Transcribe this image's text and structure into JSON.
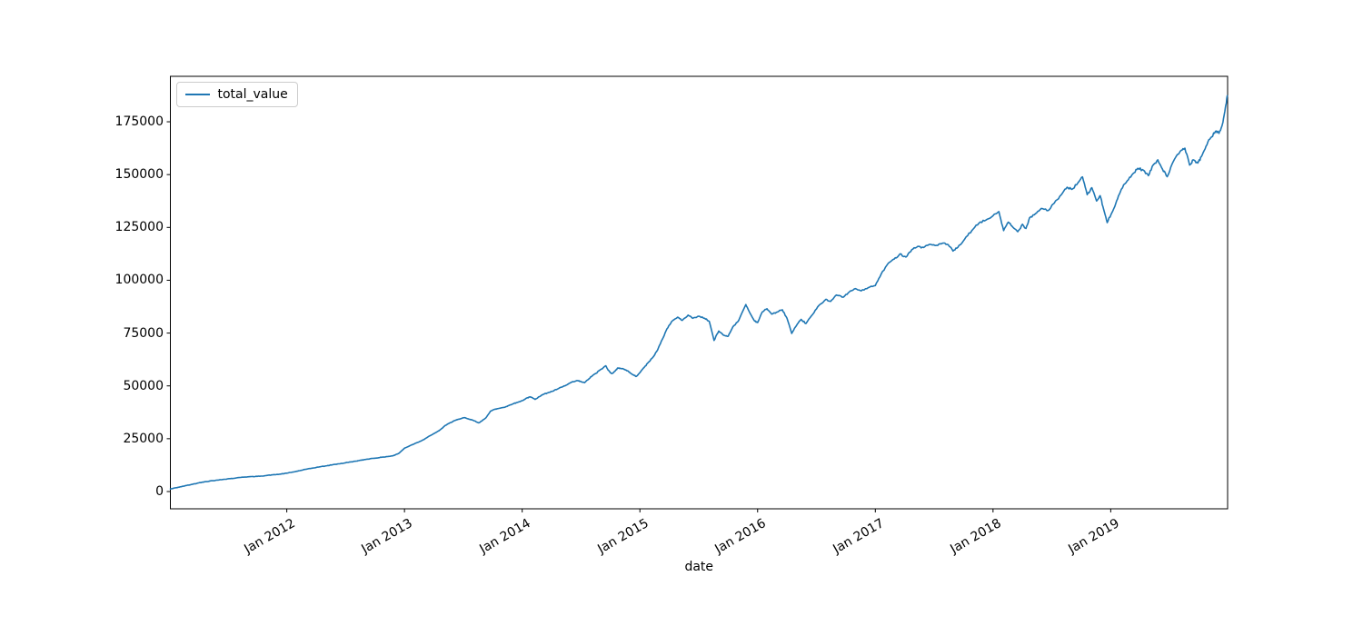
{
  "figure": {
    "background": "#ffffff"
  },
  "legend": {
    "label": "total_value"
  },
  "chart_data": {
    "type": "line",
    "title": "",
    "xlabel": "date",
    "ylabel": "",
    "grid": false,
    "legend_position": "upper left",
    "line_color": "#1f77b4",
    "axis_color": "#000000",
    "xlim": [
      2011.011,
      2019.993
    ],
    "ylim": [
      -8170,
      196510
    ],
    "yticks": [
      {
        "value": 0,
        "label": "0"
      },
      {
        "value": 25000,
        "label": "25000"
      },
      {
        "value": 50000,
        "label": "50000"
      },
      {
        "value": 75000,
        "label": "75000"
      },
      {
        "value": 100000,
        "label": "100000"
      },
      {
        "value": 125000,
        "label": "125000"
      },
      {
        "value": 150000,
        "label": "150000"
      },
      {
        "value": 175000,
        "label": "175000"
      }
    ],
    "xticks": [
      {
        "value": 2012,
        "label": "Jan 2012"
      },
      {
        "value": 2013,
        "label": "Jan 2013"
      },
      {
        "value": 2014,
        "label": "Jan 2014"
      },
      {
        "value": 2015,
        "label": "Jan 2015"
      },
      {
        "value": 2016,
        "label": "Jan 2016"
      },
      {
        "value": 2017,
        "label": "Jan 2017"
      },
      {
        "value": 2018,
        "label": "Jan 2018"
      },
      {
        "value": 2019,
        "label": "Jan 2019"
      }
    ],
    "series": [
      {
        "name": "total_value",
        "color": "#1f77b4",
        "points": [
          [
            2011.011,
            1200
          ],
          [
            2011.06,
            1800
          ],
          [
            2011.103,
            2300
          ],
          [
            2011.15,
            2900
          ],
          [
            2011.196,
            3400
          ],
          [
            2011.25,
            4100
          ],
          [
            2011.3,
            4600
          ],
          [
            2011.36,
            5100
          ],
          [
            2011.41,
            5400
          ],
          [
            2011.47,
            5800
          ],
          [
            2011.51,
            6100
          ],
          [
            2011.56,
            6300
          ],
          [
            2011.62,
            6800
          ],
          [
            2011.68,
            7000
          ],
          [
            2011.73,
            7100
          ],
          [
            2011.78,
            7300
          ],
          [
            2011.83,
            7600
          ],
          [
            2011.88,
            7900
          ],
          [
            2011.94,
            8200
          ],
          [
            2012.0,
            8700
          ],
          [
            2012.06,
            9300
          ],
          [
            2012.11,
            9900
          ],
          [
            2012.17,
            10600
          ],
          [
            2012.22,
            11100
          ],
          [
            2012.28,
            11700
          ],
          [
            2012.34,
            12200
          ],
          [
            2012.39,
            12700
          ],
          [
            2012.44,
            13100
          ],
          [
            2012.49,
            13500
          ],
          [
            2012.54,
            14000
          ],
          [
            2012.59,
            14400
          ],
          [
            2012.63,
            14800
          ],
          [
            2012.68,
            15300
          ],
          [
            2012.73,
            15700
          ],
          [
            2012.78,
            16000
          ],
          [
            2012.82,
            16300
          ],
          [
            2012.86,
            16600
          ],
          [
            2012.9,
            16900
          ],
          [
            2012.95,
            18000
          ],
          [
            2013.0,
            20500
          ],
          [
            2013.05,
            21800
          ],
          [
            2013.1,
            23000
          ],
          [
            2013.15,
            24200
          ],
          [
            2013.19,
            25500
          ],
          [
            2013.23,
            26800
          ],
          [
            2013.27,
            28000
          ],
          [
            2013.31,
            29500
          ],
          [
            2013.34,
            31000
          ],
          [
            2013.38,
            32300
          ],
          [
            2013.42,
            33500
          ],
          [
            2013.47,
            34300
          ],
          [
            2013.51,
            35000
          ],
          [
            2013.55,
            34200
          ],
          [
            2013.58,
            33800
          ],
          [
            2013.63,
            32500
          ],
          [
            2013.66,
            33500
          ],
          [
            2013.69,
            34800
          ],
          [
            2013.73,
            38000
          ],
          [
            2013.76,
            38800
          ],
          [
            2013.79,
            39200
          ],
          [
            2013.83,
            39700
          ],
          [
            2013.86,
            40100
          ],
          [
            2013.89,
            40800
          ],
          [
            2013.92,
            41500
          ],
          [
            2013.96,
            42200
          ],
          [
            2014.0,
            43000
          ],
          [
            2014.04,
            44300
          ],
          [
            2014.07,
            44800
          ],
          [
            2014.11,
            43600
          ],
          [
            2014.14,
            44800
          ],
          [
            2014.18,
            46000
          ],
          [
            2014.22,
            46800
          ],
          [
            2014.26,
            47500
          ],
          [
            2014.3,
            48500
          ],
          [
            2014.34,
            49500
          ],
          [
            2014.38,
            50500
          ],
          [
            2014.41,
            51500
          ],
          [
            2014.44,
            52000
          ],
          [
            2014.47,
            52500
          ],
          [
            2014.5,
            52000
          ],
          [
            2014.53,
            51500
          ],
          [
            2014.57,
            53500
          ],
          [
            2014.6,
            55000
          ],
          [
            2014.63,
            56000
          ],
          [
            2014.66,
            57500
          ],
          [
            2014.71,
            59500
          ],
          [
            2014.73,
            57500
          ],
          [
            2014.76,
            55800
          ],
          [
            2014.79,
            57000
          ],
          [
            2014.81,
            58500
          ],
          [
            2014.84,
            58200
          ],
          [
            2014.87,
            57800
          ],
          [
            2014.9,
            57000
          ],
          [
            2014.92,
            56000
          ],
          [
            2014.95,
            55000
          ],
          [
            2014.97,
            54500
          ],
          [
            2015.01,
            57000
          ],
          [
            2015.04,
            59000
          ],
          [
            2015.07,
            61000
          ],
          [
            2015.11,
            63500
          ],
          [
            2015.15,
            67000
          ],
          [
            2015.19,
            72000
          ],
          [
            2015.23,
            77000
          ],
          [
            2015.27,
            80500
          ],
          [
            2015.32,
            82500
          ],
          [
            2015.36,
            81000
          ],
          [
            2015.41,
            83500
          ],
          [
            2015.45,
            82000
          ],
          [
            2015.5,
            83000
          ],
          [
            2015.55,
            82000
          ],
          [
            2015.59,
            80500
          ],
          [
            2015.63,
            71500
          ],
          [
            2015.67,
            76000
          ],
          [
            2015.71,
            74000
          ],
          [
            2015.75,
            73500
          ],
          [
            2015.79,
            78000
          ],
          [
            2015.84,
            81000
          ],
          [
            2015.9,
            88500
          ],
          [
            2015.93,
            85000
          ],
          [
            2015.97,
            81000
          ],
          [
            2016.0,
            80000
          ],
          [
            2016.04,
            85000
          ],
          [
            2016.08,
            86500
          ],
          [
            2016.12,
            84000
          ],
          [
            2016.17,
            85000
          ],
          [
            2016.21,
            86000
          ],
          [
            2016.25,
            82000
          ],
          [
            2016.29,
            74800
          ],
          [
            2016.33,
            78500
          ],
          [
            2016.37,
            81500
          ],
          [
            2016.41,
            79500
          ],
          [
            2016.47,
            84000
          ],
          [
            2016.52,
            88000
          ],
          [
            2016.58,
            91000
          ],
          [
            2016.62,
            90000
          ],
          [
            2016.67,
            93000
          ],
          [
            2016.73,
            92000
          ],
          [
            2016.78,
            94500
          ],
          [
            2016.83,
            96000
          ],
          [
            2016.88,
            95000
          ],
          [
            2016.94,
            96500
          ],
          [
            2017.0,
            97500
          ],
          [
            2017.05,
            103000
          ],
          [
            2017.11,
            108000
          ],
          [
            2017.16,
            110000
          ],
          [
            2017.21,
            112500
          ],
          [
            2017.26,
            111000
          ],
          [
            2017.31,
            114500
          ],
          [
            2017.36,
            116000
          ],
          [
            2017.41,
            115500
          ],
          [
            2017.46,
            117000
          ],
          [
            2017.52,
            116500
          ],
          [
            2017.57,
            117500
          ],
          [
            2017.62,
            116800
          ],
          [
            2017.66,
            113800
          ],
          [
            2017.7,
            115500
          ],
          [
            2017.76,
            119500
          ],
          [
            2017.82,
            123500
          ],
          [
            2017.88,
            127000
          ],
          [
            2017.94,
            128500
          ],
          [
            2018.0,
            130500
          ],
          [
            2018.05,
            132500
          ],
          [
            2018.09,
            123500
          ],
          [
            2018.13,
            127500
          ],
          [
            2018.17,
            125000
          ],
          [
            2018.21,
            123000
          ],
          [
            2018.25,
            126500
          ],
          [
            2018.28,
            124500
          ],
          [
            2018.31,
            129500
          ],
          [
            2018.36,
            131500
          ],
          [
            2018.41,
            134000
          ],
          [
            2018.47,
            133000
          ],
          [
            2018.52,
            136500
          ],
          [
            2018.58,
            140500
          ],
          [
            2018.63,
            144000
          ],
          [
            2018.67,
            143000
          ],
          [
            2018.72,
            146000
          ],
          [
            2018.76,
            148900
          ],
          [
            2018.8,
            140500
          ],
          [
            2018.84,
            143800
          ],
          [
            2018.88,
            137500
          ],
          [
            2018.91,
            140000
          ],
          [
            2018.94,
            133500
          ],
          [
            2018.97,
            127300
          ],
          [
            2019.01,
            132000
          ],
          [
            2019.05,
            137500
          ],
          [
            2019.09,
            143000
          ],
          [
            2019.14,
            147000
          ],
          [
            2019.19,
            150500
          ],
          [
            2019.23,
            153000
          ],
          [
            2019.28,
            152000
          ],
          [
            2019.32,
            149500
          ],
          [
            2019.36,
            154500
          ],
          [
            2019.4,
            157000
          ],
          [
            2019.44,
            152500
          ],
          [
            2019.48,
            149000
          ],
          [
            2019.53,
            156000
          ],
          [
            2019.59,
            161000
          ],
          [
            2019.63,
            162500
          ],
          [
            2019.67,
            154500
          ],
          [
            2019.7,
            157000
          ],
          [
            2019.74,
            155500
          ],
          [
            2019.77,
            158500
          ],
          [
            2019.81,
            163500
          ],
          [
            2019.85,
            167500
          ],
          [
            2019.89,
            170500
          ],
          [
            2019.92,
            169500
          ],
          [
            2019.95,
            174000
          ],
          [
            2019.97,
            180000
          ],
          [
            2019.99,
            187300
          ]
        ]
      }
    ]
  }
}
